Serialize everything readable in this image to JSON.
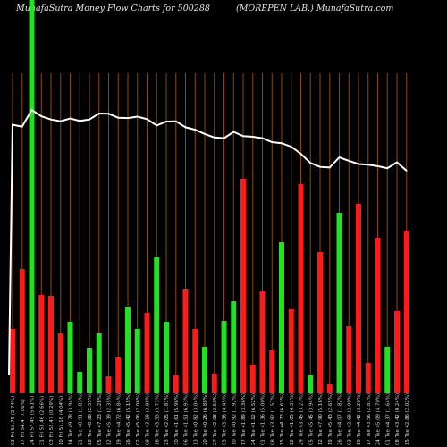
{
  "header": {
    "title_left": "MunafaSutra  Money Flow  Charts for 500288",
    "title_right": "(MOREPEN  LAB.) MunafaSutra.com"
  },
  "colors": {
    "background": "#000000",
    "grid": "#8a4b00",
    "up": "#22e022",
    "down": "#ff1a1a",
    "line": "#ffffff",
    "text": "#dcdcdc"
  },
  "chart_data": {
    "type": "bar",
    "categories": [
      "03 Fri 55.75 (2.74%)",
      "17 Fri 54.4 (7.06%)",
      "24 Fri 57.45 (5.61%)",
      "31 Fri 53.46 (2.66%)",
      "03 Fri 52.47 (0.29%)",
      "10 Fri 51.18 (4.04%)",
      "14 Tue 49.78 (3.94%)",
      "21 Tue 48.91 (1.83%)",
      "28 Tue 48.88 (2.35%)",
      "05 Tue 47.23 (1.28%)",
      "12 Tue 45.39 (2.35%)",
      "19 Tue 44.72 (6.84%)",
      "26 Tue 45.42 (5.15%)",
      "02 Tue 45.06 (2.06%)",
      "09 Tue 43.18 (3.98%)",
      "16 Tue 43.33 (3.73%)",
      "23 Tue 42.05 (1.81%)",
      "30 Tue 41.61 (5.96%)",
      "06 Tue 41.51 (6.93%)",
      "13 Tue 40.82 (3.04%)",
      "20 Tue 40.26 (6.88%)",
      "27 Tue 42.08 (2.50%)",
      "03 Tue 43.38 (4.45%)",
      "10 Tue 40.92 (1.92%)",
      "17 Tue 41.89 (3.36%)",
      "24 Tue 41.12 (6.52%)",
      "01 Tue 41.36 (5.00%)",
      "08 Tue 43.82 (1.57%)",
      "15 Tue 44.73 (6.63%)",
      "22 Tue 41.05 (4.31%)",
      "29 Tue 43.45 (3.23%)",
      "05 Tue 45.45 (3.94%)",
      "12 Tue 47.90 (5.16%)",
      "19 Tue 45.43 (2.65%)",
      "26 Tue 44.07 (1.82%)",
      "03 Tue 42.69 (2.00%)",
      "10 Tue 44.42 (3.20%)",
      "17 Tue 43.56 (2.81%)",
      "24 Tue 45.09 (4.70%)",
      "01 Tue 44.37 (1.64%)",
      "08 Tue 43.42 (0.24%)",
      "15 Tue 42.86 (2.02%)"
    ],
    "directions": [
      "down",
      "down",
      "up",
      "down",
      "down",
      "down",
      "up",
      "up",
      "up",
      "up",
      "down",
      "down",
      "up",
      "up",
      "down",
      "up",
      "up",
      "down",
      "down",
      "down",
      "up",
      "down",
      "up",
      "up",
      "down",
      "down",
      "down",
      "down",
      "up",
      "down",
      "down",
      "up",
      "down",
      "down",
      "up",
      "down",
      "down",
      "down",
      "down",
      "up",
      "down",
      "down"
    ],
    "flow_values": [
      72,
      139,
      440,
      110,
      109,
      67,
      80,
      24,
      51,
      67,
      19,
      41,
      97,
      72,
      90,
      153,
      80,
      20,
      117,
      72,
      52,
      22,
      81,
      103,
      240,
      32,
      114,
      49,
      169,
      94,
      234,
      20,
      158,
      10,
      202,
      75,
      212,
      34,
      174,
      52,
      92,
      182
    ],
    "price_line": [
      62.5,
      62.0,
      66.7,
      64.9,
      64.0,
      63.5,
      64.3,
      63.6,
      64.0,
      65.7,
      65.6,
      64.5,
      64.4,
      64.8,
      64.1,
      62.3,
      63.4,
      63.5,
      61.8,
      61.1,
      59.9,
      58.9,
      58.7,
      60.5,
      59.3,
      59.1,
      58.7,
      57.6,
      57.3,
      56.3,
      54.3,
      51.7,
      50.6,
      50.4,
      53.3,
      52.3,
      51.4,
      51.2,
      50.8,
      50.2,
      51.9,
      49.5
    ],
    "price_start": 20,
    "title": "MunafaSutra  Money Flow  Charts for 500288",
    "subtitle": "(MOREPEN  LAB.) MunafaSutra.com",
    "grid": "vertical",
    "xlabel": "",
    "ylabel": ""
  }
}
